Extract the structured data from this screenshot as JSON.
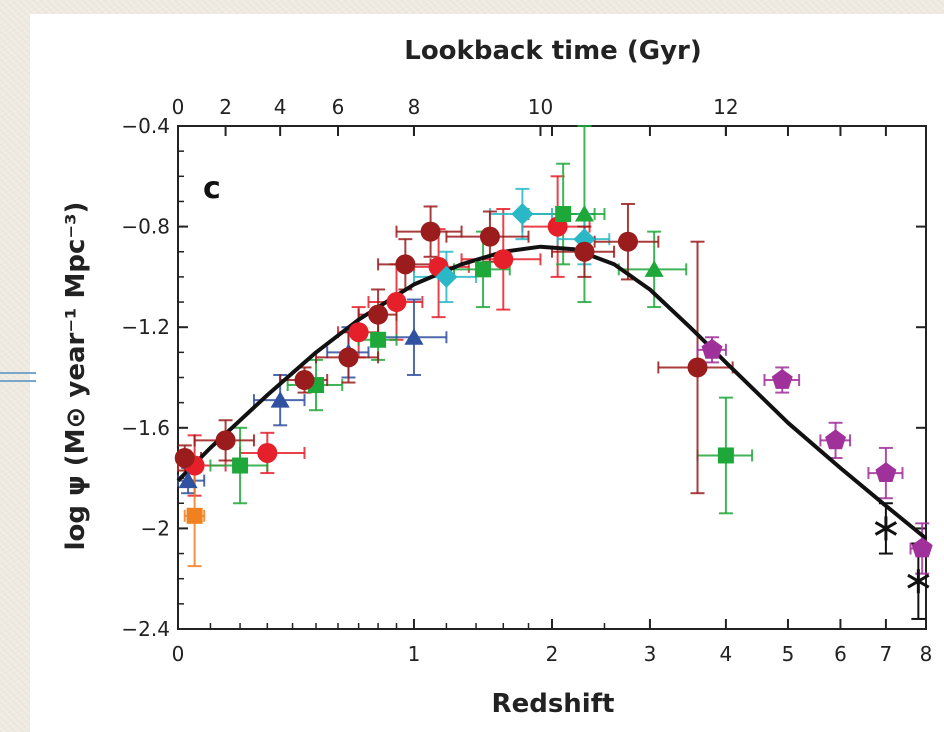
{
  "panel_label": "c",
  "colors": {
    "curve": "#111111",
    "axis": "#222222",
    "background": "#f1ede4"
  },
  "chart_data": {
    "type": "scatter",
    "title": "",
    "xlabel": "Redshift",
    "ylabel": "log ψ (M⊙ year⁻¹ Mpc⁻³)",
    "x_scale": "log(1+z)",
    "xlim": [
      0,
      8
    ],
    "ylim": [
      -2.4,
      -0.4
    ],
    "x_ticks": [
      "0",
      "1",
      "2",
      "3",
      "4",
      "5",
      "6",
      "7",
      "8"
    ],
    "y_ticks": [
      "-0.4",
      "-0.8",
      "-1.2",
      "-1.6",
      "-2",
      "-2.4"
    ],
    "top_axis": {
      "label": "Lookback time (Gyr)",
      "ticks": [
        {
          "label": "0",
          "z": 0
        },
        {
          "label": "2",
          "z": 0.15
        },
        {
          "label": "4",
          "z": 0.35
        },
        {
          "label": "6",
          "z": 0.6
        },
        {
          "label": "8",
          "z": 1.0
        },
        {
          "label": "10",
          "z": 1.9
        },
        {
          "label": "12",
          "z": 4.0
        }
      ]
    },
    "fit_curve": {
      "color": "#111111",
      "points": [
        [
          0,
          -1.81
        ],
        [
          0.1,
          -1.68
        ],
        [
          0.2,
          -1.57
        ],
        [
          0.3,
          -1.47
        ],
        [
          0.5,
          -1.3
        ],
        [
          0.7,
          -1.17
        ],
        [
          1.0,
          -1.03
        ],
        [
          1.3,
          -0.95
        ],
        [
          1.6,
          -0.9
        ],
        [
          1.9,
          -0.88
        ],
        [
          2.2,
          -0.89
        ],
        [
          2.6,
          -0.95
        ],
        [
          3.0,
          -1.05
        ],
        [
          3.5,
          -1.2
        ],
        [
          4.0,
          -1.34
        ],
        [
          5.0,
          -1.58
        ],
        [
          6.0,
          -1.76
        ],
        [
          7.0,
          -1.91
        ],
        [
          8.0,
          -2.04
        ]
      ]
    },
    "series": [
      {
        "color": "#e6202a",
        "marker": "circle",
        "points": [
          {
            "x": 0.05,
            "y": -1.75,
            "xerr": [
              0.05,
              0.1
            ],
            "yerr": [
              0.12,
              0.12
            ]
          },
          {
            "x": 0.3,
            "y": -1.7,
            "xerr": [
              0.1,
              0.15
            ],
            "yerr": [
              0.08,
              0.08
            ]
          },
          {
            "x": 0.7,
            "y": -1.22,
            "xerr": [
              0.1,
              0.1
            ],
            "yerr": [
              0.1,
              0.1
            ]
          },
          {
            "x": 0.9,
            "y": -1.1,
            "xerr": [
              0.15,
              0.15
            ],
            "yerr": [
              0.15,
              0.15
            ]
          },
          {
            "x": 1.15,
            "y": -0.96,
            "xerr": [
              0.15,
              0.2
            ],
            "yerr": [
              0.2,
              0.15
            ]
          },
          {
            "x": 1.6,
            "y": -0.93,
            "xerr": [
              0.3,
              0.3
            ],
            "yerr": [
              0.2,
              0.2
            ]
          },
          {
            "x": 2.05,
            "y": -0.8,
            "xerr": [
              0.3,
              0.3
            ],
            "yerr": [
              0.2,
              0.2
            ]
          }
        ]
      },
      {
        "color": "#1fa83a",
        "marker": "square",
        "points": [
          {
            "x": 0.2,
            "y": -1.75,
            "xerr": [
              0.1,
              0.1
            ],
            "yerr": [
              0.15,
              0.15
            ]
          },
          {
            "x": 0.5,
            "y": -1.43,
            "xerr": [
              0.12,
              0.12
            ],
            "yerr": [
              0.1,
              0.1
            ]
          },
          {
            "x": 0.8,
            "y": -1.25,
            "xerr": [
              0.1,
              0.1
            ],
            "yerr": [
              0.08,
              0.08
            ]
          },
          {
            "x": 1.45,
            "y": -0.97,
            "xerr": [
              0.2,
              0.2
            ],
            "yerr": [
              0.15,
              0.15
            ]
          },
          {
            "x": 2.1,
            "y": -0.75,
            "xerr": [
              0.3,
              0.3
            ],
            "yerr": [
              0.2,
              0.2
            ]
          },
          {
            "x": 4.0,
            "y": -1.71,
            "xerr": [
              0.4,
              0.4
            ],
            "yerr": [
              0.23,
              0.23
            ]
          }
        ]
      },
      {
        "color": "#1fa83a",
        "marker": "triangle",
        "points": [
          {
            "x": 2.3,
            "y": -0.75,
            "xerr": [
              0.2,
              0.2
            ],
            "yerr": [
              0.35,
              0.35
            ]
          },
          {
            "x": 3.05,
            "y": -0.97,
            "xerr": [
              0.4,
              0.4
            ],
            "yerr": [
              0.15,
              0.15
            ]
          }
        ]
      },
      {
        "color": "#3050a0",
        "marker": "triangle",
        "points": [
          {
            "x": 0.03,
            "y": -1.81,
            "xerr": [
              0.03,
              0.05
            ],
            "yerr": [
              0.05,
              0.05
            ]
          },
          {
            "x": 0.35,
            "y": -1.49,
            "xerr": [
              0.1,
              0.1
            ],
            "yerr": [
              0.1,
              0.1
            ]
          },
          {
            "x": 0.65,
            "y": -1.3,
            "xerr": [
              0.1,
              0.1
            ],
            "yerr": [
              0.1,
              0.1
            ]
          },
          {
            "x": 1.0,
            "y": -1.24,
            "xerr": [
              0.2,
              0.2
            ],
            "yerr": [
              0.15,
              0.15
            ]
          }
        ]
      },
      {
        "color": "#2ab8c8",
        "marker": "diamond",
        "points": [
          {
            "x": 1.2,
            "y": -1.0,
            "xerr": [
              0.2,
              0.2
            ],
            "yerr": [
              0.1,
              0.1
            ]
          },
          {
            "x": 1.75,
            "y": -0.75,
            "xerr": [
              0.25,
              0.25
            ],
            "yerr": [
              0.1,
              0.1
            ]
          },
          {
            "x": 2.3,
            "y": -0.85,
            "xerr": [
              0.25,
              0.25
            ],
            "yerr": [
              0.1,
              0.1
            ]
          }
        ]
      },
      {
        "color": "#9b1c1c",
        "marker": "circle",
        "points": [
          {
            "x": 0.02,
            "y": -1.72,
            "xerr": [
              0.02,
              0.05
            ],
            "yerr": [
              0.05,
              0.05
            ]
          },
          {
            "x": 0.15,
            "y": -1.65,
            "xerr": [
              0.1,
              0.1
            ],
            "yerr": [
              0.08,
              0.08
            ]
          },
          {
            "x": 0.45,
            "y": -1.41,
            "xerr": [
              0.1,
              0.1
            ],
            "yerr": [
              0.05,
              0.05
            ]
          },
          {
            "x": 0.65,
            "y": -1.32,
            "xerr": [
              0.15,
              0.15
            ],
            "yerr": [
              0.1,
              0.1
            ]
          },
          {
            "x": 0.8,
            "y": -1.15,
            "xerr": [
              0.1,
              0.1
            ],
            "yerr": [
              0.1,
              0.1
            ]
          },
          {
            "x": 0.95,
            "y": -0.95,
            "xerr": [
              0.15,
              0.15
            ],
            "yerr": [
              0.1,
              0.1
            ]
          },
          {
            "x": 1.1,
            "y": -0.82,
            "xerr": [
              0.2,
              0.2
            ],
            "yerr": [
              0.1,
              0.1
            ]
          },
          {
            "x": 1.5,
            "y": -0.84,
            "xerr": [
              0.3,
              0.3
            ],
            "yerr": [
              0.1,
              0.1
            ]
          },
          {
            "x": 2.3,
            "y": -0.9,
            "xerr": [
              0.3,
              0.3
            ],
            "yerr": [
              0.1,
              0.1
            ]
          },
          {
            "x": 2.75,
            "y": -0.86,
            "xerr": [
              0.35,
              0.35
            ],
            "yerr": [
              0.15,
              0.15
            ]
          },
          {
            "x": 3.6,
            "y": -1.36,
            "xerr": [
              0.5,
              0.5
            ],
            "yerr": [
              0.5,
              0.5
            ]
          }
        ]
      },
      {
        "color": "#a0309a",
        "marker": "pentagon",
        "points": [
          {
            "x": 3.8,
            "y": -1.29,
            "xerr": [
              0.2,
              0.2
            ],
            "yerr": [
              0.05,
              0.05
            ]
          },
          {
            "x": 4.9,
            "y": -1.41,
            "xerr": [
              0.3,
              0.3
            ],
            "yerr": [
              0.05,
              0.05
            ]
          },
          {
            "x": 5.9,
            "y": -1.65,
            "xerr": [
              0.3,
              0.3
            ],
            "yerr": [
              0.07,
              0.07
            ]
          },
          {
            "x": 7.0,
            "y": -1.78,
            "xerr": [
              0.4,
              0.4
            ],
            "yerr": [
              0.1,
              0.1
            ]
          },
          {
            "x": 7.9,
            "y": -2.08,
            "xerr": [
              0.3,
              0.3
            ],
            "yerr": [
              0.1,
              0.1
            ]
          }
        ]
      },
      {
        "color": "#f08020",
        "marker": "square",
        "points": [
          {
            "x": 0.05,
            "y": -1.95,
            "xerr": [
              0.03,
              0.03
            ],
            "yerr": [
              0.2,
              0.2
            ]
          }
        ]
      },
      {
        "color": "#111111",
        "marker": "star",
        "points": [
          {
            "x": 7.0,
            "y": -2.0,
            "xerr": [
              0,
              0
            ],
            "yerr": [
              0.1,
              0.1
            ]
          },
          {
            "x": 7.8,
            "y": -2.21,
            "xerr": [
              0,
              0
            ],
            "yerr": [
              0.15,
              0.15
            ]
          }
        ]
      }
    ]
  }
}
